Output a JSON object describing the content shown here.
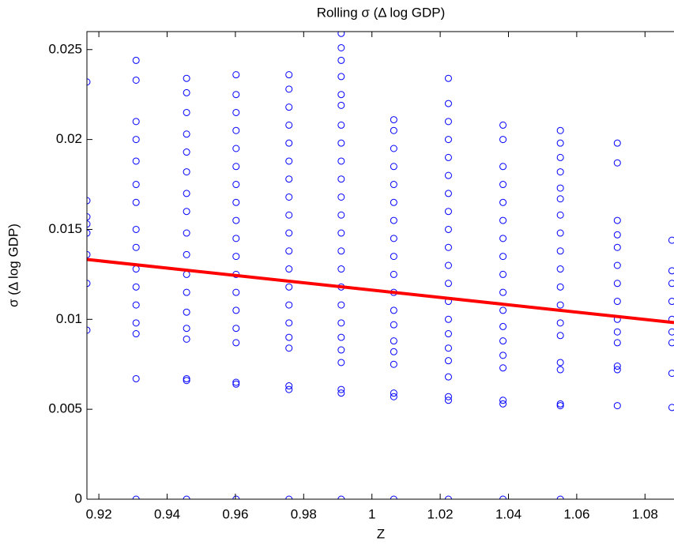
{
  "chart_data": {
    "type": "scatter",
    "title": "Rolling σ (Δ log GDP)",
    "xlabel": "Z",
    "ylabel": "σ (Δ log GDP)",
    "xlim": [
      0.9165,
      1.0885
    ],
    "ylim": [
      0,
      0.026
    ],
    "xticks": [
      0.92,
      0.94,
      0.96,
      0.98,
      1,
      1.02,
      1.04,
      1.06,
      1.08
    ],
    "yticks": [
      0,
      0.005,
      0.01,
      0.015,
      0.02,
      0.025
    ],
    "grid": false,
    "series": [
      {
        "type": "scatter",
        "color": "#0000ff",
        "x": [
          0.9165,
          0.9165,
          0.9165,
          0.9165,
          0.9165,
          0.9165,
          0.9165,
          0.9165,
          0.9309,
          0.9309,
          0.9309,
          0.9309,
          0.9309,
          0.9309,
          0.9309,
          0.9309,
          0.9309,
          0.9309,
          0.9309,
          0.9309,
          0.9309,
          0.9309,
          0.9309,
          0.9309,
          0.9457,
          0.9457,
          0.9457,
          0.9457,
          0.9457,
          0.9457,
          0.9457,
          0.9457,
          0.9457,
          0.9457,
          0.9457,
          0.9457,
          0.9457,
          0.9457,
          0.9457,
          0.9457,
          0.9457,
          0.9457,
          0.9602,
          0.9602,
          0.9602,
          0.9602,
          0.9602,
          0.9602,
          0.9602,
          0.9602,
          0.9602,
          0.9602,
          0.9602,
          0.9602,
          0.9602,
          0.9602,
          0.9602,
          0.9602,
          0.9602,
          0.9602,
          0.9602,
          0.9757,
          0.9757,
          0.9757,
          0.9757,
          0.9757,
          0.9757,
          0.9757,
          0.9757,
          0.9757,
          0.9757,
          0.9757,
          0.9757,
          0.9757,
          0.9757,
          0.9757,
          0.9757,
          0.9757,
          0.9757,
          0.9757,
          0.9757,
          0.991,
          0.991,
          0.991,
          0.991,
          0.991,
          0.991,
          0.991,
          0.991,
          0.991,
          0.991,
          0.991,
          0.991,
          0.991,
          0.991,
          0.991,
          0.991,
          0.991,
          0.991,
          0.991,
          0.991,
          0.991,
          0.991,
          0.991,
          0.991,
          1.0064,
          1.0064,
          1.0064,
          1.0064,
          1.0064,
          1.0064,
          1.0064,
          1.0064,
          1.0064,
          1.0064,
          1.0064,
          1.0064,
          1.0064,
          1.0064,
          1.0064,
          1.0064,
          1.0064,
          1.0064,
          1.0064,
          1.0224,
          1.0224,
          1.0224,
          1.0224,
          1.0224,
          1.0224,
          1.0224,
          1.0224,
          1.0224,
          1.0224,
          1.0224,
          1.0224,
          1.0224,
          1.0224,
          1.0224,
          1.0224,
          1.0224,
          1.0224,
          1.0224,
          1.0224,
          1.0224,
          1.0384,
          1.0384,
          1.0384,
          1.0384,
          1.0384,
          1.0384,
          1.0384,
          1.0384,
          1.0384,
          1.0384,
          1.0384,
          1.0384,
          1.0384,
          1.0384,
          1.0384,
          1.0384,
          1.0384,
          1.0384,
          1.0552,
          1.0552,
          1.0552,
          1.0552,
          1.0552,
          1.0552,
          1.0552,
          1.0552,
          1.0552,
          1.0552,
          1.0552,
          1.0552,
          1.0552,
          1.0552,
          1.0552,
          1.0552,
          1.0552,
          1.0552,
          1.0552,
          1.0719,
          1.0719,
          1.0719,
          1.0719,
          1.0719,
          1.0719,
          1.0719,
          1.0719,
          1.0719,
          1.0719,
          1.0719,
          1.0719,
          1.0719,
          1.0719,
          1.0879,
          1.0879,
          1.0879,
          1.0879,
          1.0879,
          1.0879,
          1.0879,
          1.0879,
          1.0879
        ],
        "values": [
          0.0232,
          0.0166,
          0.0157,
          0.0153,
          0.0148,
          0.0136,
          0.012,
          0.0094,
          0.0244,
          0.0233,
          0.021,
          0.02,
          0.0188,
          0.0175,
          0.0165,
          0.015,
          0.014,
          0.0128,
          0.0118,
          0.0108,
          0.0098,
          0.0092,
          0.0067,
          0,
          0.0234,
          0.0226,
          0.0215,
          0.0203,
          0.0193,
          0.0182,
          0.017,
          0.016,
          0.0148,
          0.0136,
          0.0125,
          0.0115,
          0.0104,
          0.0095,
          0.0089,
          0.0067,
          0.0066,
          0,
          0.0236,
          0.0225,
          0.0215,
          0.0205,
          0.0195,
          0.0185,
          0.0175,
          0.0165,
          0.0155,
          0.0145,
          0.0135,
          0.0125,
          0.0115,
          0.0105,
          0.0095,
          0.0087,
          0.0065,
          0.0064,
          0,
          0.0236,
          0.0228,
          0.0218,
          0.0208,
          0.0198,
          0.0188,
          0.0178,
          0.0168,
          0.0158,
          0.0148,
          0.0138,
          0.0128,
          0.0118,
          0.0108,
          0.0098,
          0.009,
          0.0084,
          0.0063,
          0.0061,
          0,
          0.0259,
          0.0251,
          0.0244,
          0.0235,
          0.0225,
          0.0219,
          0.0208,
          0.0198,
          0.0188,
          0.0178,
          0.0168,
          0.0158,
          0.0148,
          0.0138,
          0.0128,
          0.0118,
          0.0108,
          0.0098,
          0.009,
          0.0083,
          0.0076,
          0.0061,
          0.0059,
          0,
          0.0211,
          0.0205,
          0.0195,
          0.0185,
          0.0175,
          0.0165,
          0.0155,
          0.0145,
          0.0135,
          0.0125,
          0.0115,
          0.0105,
          0.0097,
          0.0088,
          0.0082,
          0.0075,
          0.0059,
          0.0057,
          0,
          0.0234,
          0.022,
          0.021,
          0.02,
          0.019,
          0.018,
          0.017,
          0.016,
          0.015,
          0.014,
          0.013,
          0.012,
          0.011,
          0.01,
          0.0092,
          0.0084,
          0.0077,
          0.0068,
          0.0057,
          0.0055,
          0,
          0.0208,
          0.02,
          0.0185,
          0.0175,
          0.0165,
          0.0155,
          0.0145,
          0.0135,
          0.0125,
          0.0115,
          0.0105,
          0.0096,
          0.0088,
          0.008,
          0.0073,
          0.0055,
          0.0053,
          0,
          0.0205,
          0.0198,
          0.019,
          0.0182,
          0.0173,
          0.0167,
          0.0158,
          0.0148,
          0.0138,
          0.0128,
          0.0118,
          0.0108,
          0.0098,
          0.0091,
          0.0076,
          0.0072,
          0.0053,
          0.0052,
          0,
          0.0198,
          0.0187,
          0.0155,
          0.0147,
          0.014,
          0.013,
          0.012,
          0.011,
          0.01,
          0.0093,
          0.0087,
          0.0074,
          0.0072,
          0.0052,
          0.0144,
          0.0127,
          0.012,
          0.011,
          0.01,
          0.0093,
          0.0087,
          0.007,
          0.0051
        ]
      },
      {
        "type": "line",
        "color": "#ff0000",
        "x": [
          0.9165,
          1.0885
        ],
        "values": [
          0.01333,
          0.00982
        ]
      }
    ]
  }
}
